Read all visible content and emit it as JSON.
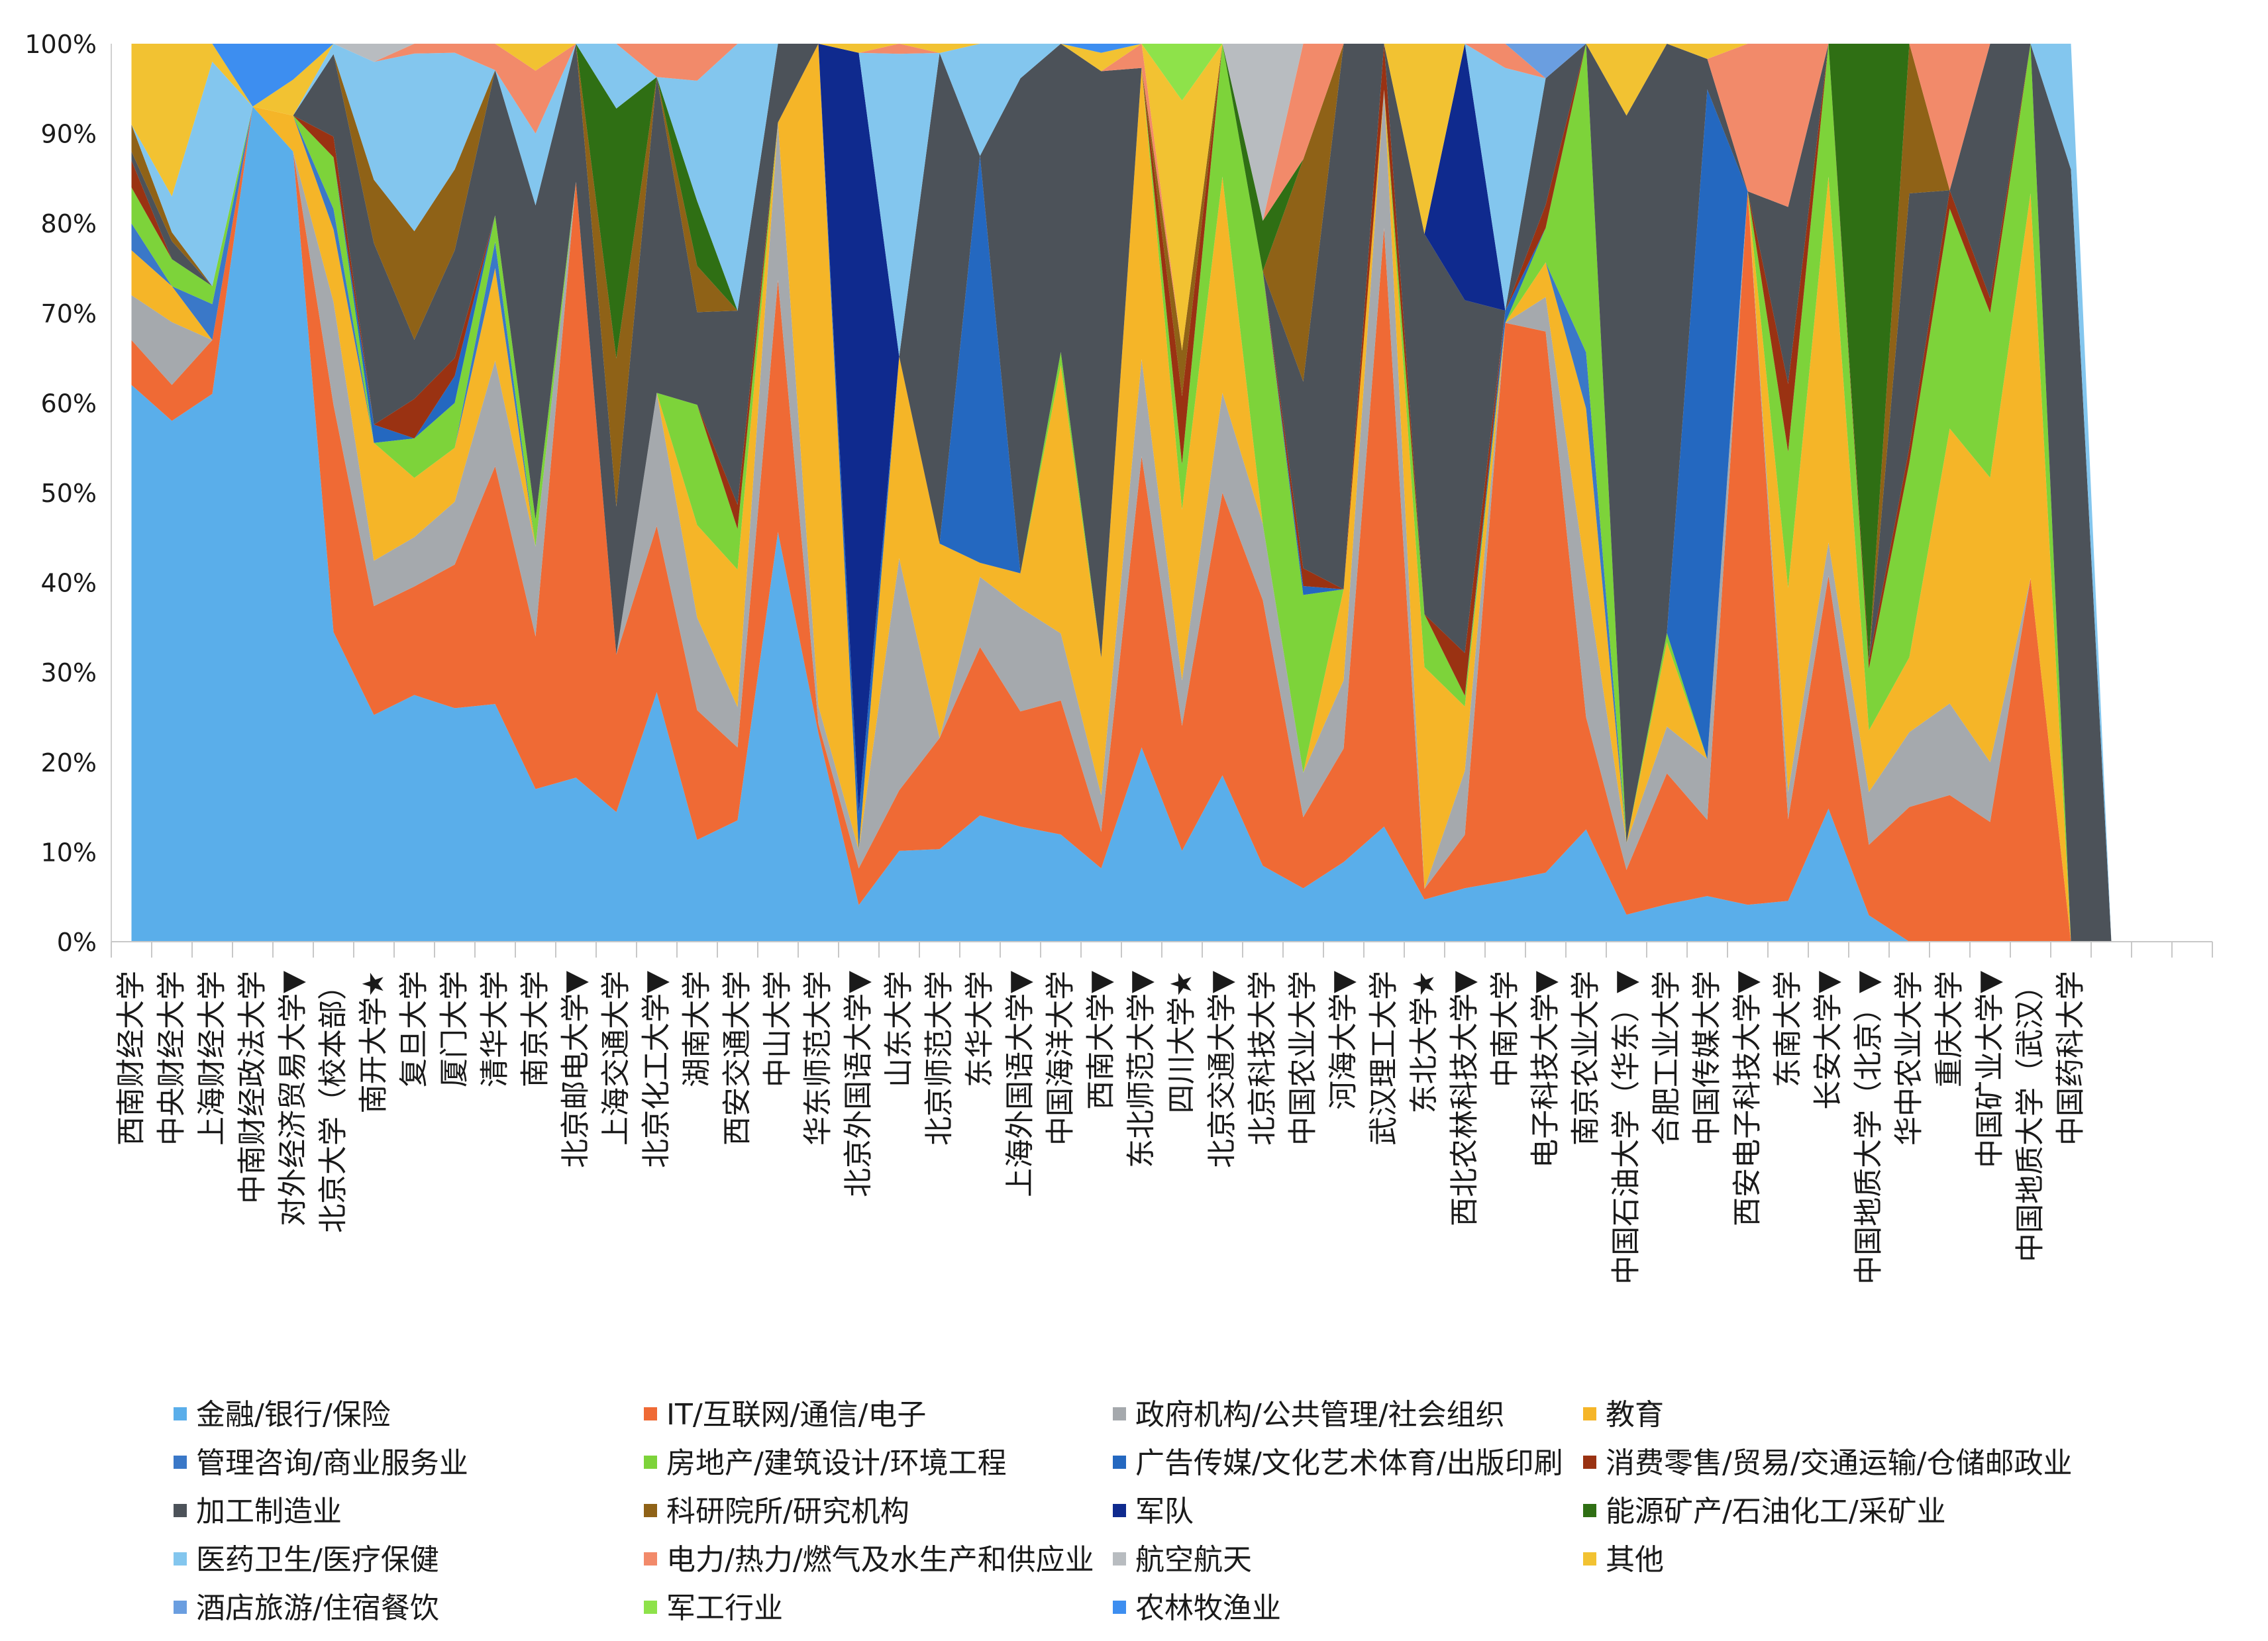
{
  "chart_data": {
    "type": "area",
    "stacked": "percent",
    "title": "",
    "xlabel": "",
    "ylabel": "",
    "ylim": [
      0,
      100
    ],
    "ytick_labels": [
      "0%",
      "10%",
      "20%",
      "30%",
      "40%",
      "50%",
      "60%",
      "70%",
      "80%",
      "90%",
      "100%"
    ],
    "grid": false,
    "legend_position": "bottom",
    "categories": [
      "西南财经大学",
      "中央财经大学",
      "上海财经大学",
      "中南财经政法大学",
      "对外经济贸易大学▼",
      "北京大学（校本部）",
      "南开大学★",
      "复旦大学",
      "厦门大学",
      "清华大学",
      "南京大学",
      "北京邮电大学▼",
      "上海交通大学",
      "北京化工大学▼",
      "湖南大学",
      "西安交通大学",
      "中山大学",
      "华东师范大学",
      "北京外国语大学▼",
      "山东大学",
      "北京师范大学",
      "东华大学",
      "上海外国语大学▼",
      "中国海洋大学",
      "西南大学▼",
      "东北师范大学▼",
      "四川大学★",
      "北京交通大学▼",
      "北京科技大学",
      "中国农业大学",
      "河海大学▼",
      "武汉理工大学",
      "东北大学★",
      "西北农林科技大学▼",
      "中南大学",
      "电子科技大学▼",
      "南京农业大学",
      "中国石油大学（华东）▼",
      "合肥工业大学",
      "中国传媒大学",
      "西安电子科技大学▼",
      "东南大学",
      "长安大学▼",
      "中国地质大学（北京）▼",
      "华中农业大学",
      "重庆大学",
      "中国矿业大学▼",
      "中国地质大学（武汉）",
      "中国药科大学",
      "",
      "",
      ""
    ],
    "series": [
      {
        "name": "金融/银行/保险",
        "color": "#5aaeea",
        "values": [
          62,
          58,
          61,
          93,
          88,
          30,
          25,
          25,
          26,
          18,
          17,
          19,
          14,
          15,
          11,
          15,
          26,
          23,
          4,
          9,
          10,
          9,
          10,
          8,
          8,
          8,
          8,
          10,
          6,
          6,
          7,
          5,
          4,
          5,
          5,
          6,
          4,
          3,
          4,
          3,
          3,
          3,
          4,
          3,
          0,
          0,
          0,
          0,
          0,
          0,
          0,
          0
        ]
      },
      {
        "name": "IT/互联网/通信/电子",
        "color": "#ef6a35",
        "values": [
          5,
          4,
          6,
          0,
          0,
          22,
          12,
          11,
          16,
          18,
          17,
          69,
          17,
          10,
          14,
          9,
          16,
          1,
          4,
          6,
          12,
          12,
          10,
          10,
          4,
          12,
          11,
          17,
          21,
          8,
          10,
          26,
          1,
          5,
          46,
          47,
          4,
          5,
          14,
          5,
          58,
          6,
          7,
          8,
          9,
          8,
          8,
          17,
          0,
          0,
          0,
          0
        ]
      },
      {
        "name": "政府机构/公共管理/社会组织",
        "color": "#a5a9ad",
        "values": [
          5,
          7,
          0,
          0,
          0,
          10,
          5,
          5,
          7,
          8,
          10,
          0,
          0,
          8,
          10,
          5,
          10,
          2,
          2,
          23,
          0,
          5,
          9,
          5,
          4,
          4,
          4,
          6,
          6,
          5,
          6,
          6,
          0,
          6,
          0,
          3,
          5,
          3,
          5,
          4,
          0,
          2,
          1,
          6,
          5,
          5,
          4,
          0,
          0,
          0,
          0,
          0
        ]
      },
      {
        "name": "教育",
        "color": "#f5b528",
        "values": [
          5,
          4,
          0,
          0,
          4,
          7,
          13,
          6,
          6,
          7,
          0,
          0,
          0,
          0,
          10,
          17,
          0,
          73,
          0,
          20,
          21,
          1,
          3,
          20,
          15,
          12,
          15,
          13,
          0,
          0,
          8,
          0,
          21,
          6,
          0,
          3,
          6,
          0,
          9,
          0,
          0,
          15,
          11,
          7,
          5,
          15,
          19,
          18,
          0,
          0,
          0,
          0
        ]
      },
      {
        "name": "管理咨询/商业服务业",
        "color": "#3a78c8",
        "values": [
          3,
          0,
          4,
          0,
          0,
          2,
          0,
          0,
          0,
          2,
          0,
          0,
          0,
          0,
          0,
          0,
          0,
          0,
          0,
          0,
          0,
          0,
          0,
          0,
          0,
          0,
          0,
          0,
          0,
          0,
          0,
          0,
          0,
          0,
          0,
          0,
          2,
          0,
          0,
          0,
          0,
          0,
          0,
          0,
          0,
          0,
          0,
          0,
          0,
          0,
          0,
          0
        ]
      },
      {
        "name": "房地产/建筑设计/环境工程",
        "color": "#7dd33a",
        "values": [
          4,
          3,
          2,
          0,
          0,
          5,
          0,
          4,
          5,
          2,
          3,
          0,
          0,
          0,
          13,
          5,
          0,
          0,
          0,
          0,
          0,
          0,
          0,
          1,
          0,
          0,
          4,
          8,
          20,
          20,
          0,
          0,
          5,
          1,
          0,
          3,
          11,
          0,
          1,
          0,
          0,
          10,
          4,
          7,
          13,
          12,
          11,
          7,
          0,
          0,
          0,
          0
        ]
      },
      {
        "name": "广告传媒/文化艺术体育/出版印刷",
        "color": "#2468c0",
        "values": [
          0,
          0,
          0,
          0,
          0,
          0,
          2,
          0,
          3,
          0,
          0,
          0,
          0,
          0,
          0,
          0,
          0,
          0,
          4,
          0,
          0,
          29,
          0,
          0,
          0,
          0,
          0,
          0,
          0,
          1,
          0,
          0,
          0,
          0,
          1,
          0,
          0,
          0,
          0,
          44,
          0,
          0,
          0,
          0,
          0,
          0,
          0,
          0,
          0,
          0,
          0,
          0
        ]
      },
      {
        "name": "消费零售/贸易/交通运输/仓储邮政业",
        "color": "#9a3212",
        "values": [
          3,
          0,
          0,
          0,
          0,
          2,
          0,
          4,
          2,
          0,
          0,
          0,
          0,
          0,
          0,
          3,
          0,
          0,
          0,
          0,
          0,
          0,
          0,
          0,
          0,
          0,
          6,
          0,
          0,
          2,
          0,
          2,
          0,
          4,
          0,
          2,
          0,
          0,
          0,
          0,
          0,
          5,
          0,
          1,
          1,
          1,
          1,
          0,
          0,
          0,
          0,
          0
        ]
      },
      {
        "name": "加工制造业",
        "color": "#4c5259",
        "values": [
          1,
          2,
          0,
          0,
          0,
          8,
          20,
          6,
          12,
          11,
          35,
          16,
          16,
          19,
          10,
          24,
          5,
          0,
          0,
          0,
          53,
          0,
          43,
          23,
          64,
          0,
          0,
          0,
          0,
          21,
          48,
          0,
          36,
          33,
          0,
          11,
          0,
          81,
          63,
          2,
          0,
          13,
          0,
          0,
          17,
          0,
          17,
          0,
          86,
          0,
          0,
          0
        ]
      },
      {
        "name": "科研院所/研究机构",
        "color": "#8f6217",
        "values": [
          3,
          1,
          0,
          0,
          0,
          0,
          7,
          11,
          9,
          0,
          0,
          0,
          16,
          0,
          5,
          0,
          0,
          0,
          0,
          0,
          0,
          0,
          0,
          0,
          0,
          0,
          4,
          0,
          0,
          25,
          0,
          0,
          0,
          0,
          0,
          0,
          0,
          0,
          0,
          0,
          0,
          0,
          0,
          0,
          10,
          0,
          0,
          0,
          0,
          0,
          0,
          0
        ]
      },
      {
        "name": "军队",
        "color": "#0f2a8e",
        "values": [
          0,
          0,
          0,
          0,
          0,
          0,
          0,
          0,
          0,
          0,
          0,
          0,
          0,
          0,
          0,
          0,
          0,
          0,
          83,
          0,
          0,
          0,
          0,
          0,
          0,
          0,
          0,
          0,
          0,
          0,
          0,
          0,
          0,
          24,
          0,
          0,
          0,
          0,
          0,
          0,
          0,
          0,
          0,
          0,
          0,
          0,
          0,
          0,
          0,
          0,
          0,
          0
        ]
      },
      {
        "name": "能源矿产/石油化工/采矿业",
        "color": "#2f6f14",
        "values": [
          0,
          0,
          0,
          0,
          0,
          0,
          0,
          0,
          0,
          0,
          0,
          0,
          27,
          0,
          7,
          0,
          0,
          0,
          0,
          0,
          0,
          0,
          0,
          0,
          0,
          0,
          0,
          0,
          4,
          0,
          0,
          0,
          0,
          0,
          0,
          0,
          0,
          0,
          0,
          0,
          0,
          0,
          0,
          70,
          0,
          0,
          0,
          0,
          0,
          0,
          0,
          0
        ]
      },
      {
        "name": "医药卫生/医疗保健",
        "color": "#83c6ee",
        "values": [
          0,
          4,
          25,
          0,
          0,
          1,
          13,
          18,
          13,
          0,
          8,
          0,
          7,
          0,
          13,
          33,
          0,
          0,
          0,
          30,
          0,
          8,
          3,
          0,
          0,
          0,
          0,
          0,
          0,
          0,
          0,
          0,
          0,
          0,
          20,
          0,
          0,
          0,
          0,
          0,
          0,
          0,
          0,
          0,
          0,
          0,
          0,
          0,
          14,
          0,
          0,
          0
        ]
      },
      {
        "name": "电力/热力/燃气及水生产和供应业",
        "color": "#f28a6a",
        "values": [
          0,
          0,
          0,
          0,
          0,
          0,
          0,
          1,
          1,
          2,
          7,
          0,
          0,
          2,
          4,
          0,
          0,
          0,
          0,
          1,
          0,
          0,
          0,
          0,
          0,
          1,
          0,
          0,
          0,
          13,
          0,
          0,
          0,
          0,
          2,
          0,
          0,
          0,
          0,
          0,
          12,
          12,
          0,
          0,
          0,
          8,
          0,
          0,
          0,
          0,
          0,
          0
        ]
      },
      {
        "name": "航空航天",
        "color": "#b8bcc0",
        "values": [
          0,
          0,
          0,
          0,
          0,
          0,
          2,
          0,
          0,
          0,
          0,
          0,
          0,
          0,
          0,
          0,
          0,
          0,
          0,
          0,
          0,
          0,
          0,
          0,
          0,
          0,
          0,
          0,
          14,
          0,
          0,
          0,
          0,
          0,
          0,
          0,
          0,
          0,
          0,
          0,
          0,
          0,
          0,
          0,
          0,
          0,
          0,
          0,
          0,
          0,
          0,
          0
        ]
      },
      {
        "name": "其他",
        "color": "#f2c232",
        "values": [
          9,
          17,
          2,
          0,
          4,
          0,
          0,
          0,
          0,
          0,
          3,
          0,
          0,
          0,
          0,
          0,
          0,
          0,
          1,
          0,
          1,
          0,
          0,
          0,
          2,
          0,
          22,
          0,
          0,
          0,
          0,
          0,
          18,
          0,
          0,
          0,
          0,
          8,
          0,
          1,
          0,
          0,
          0,
          0,
          0,
          0,
          0,
          0,
          0,
          0,
          0,
          0
        ]
      },
      {
        "name": "酒店旅游/住宿餐饮",
        "color": "#6a9ee0",
        "values": [
          0,
          0,
          0,
          0,
          0,
          0,
          0,
          0,
          0,
          0,
          0,
          0,
          0,
          0,
          0,
          0,
          0,
          0,
          0,
          0,
          0,
          0,
          0,
          0,
          0,
          0,
          0,
          0,
          0,
          0,
          0,
          0,
          0,
          0,
          0,
          3,
          0,
          0,
          0,
          0,
          0,
          0,
          0,
          0,
          0,
          0,
          0,
          0,
          0,
          0,
          0,
          0
        ]
      },
      {
        "name": "军工行业",
        "color": "#8ee24a",
        "values": [
          0,
          0,
          0,
          0,
          0,
          0,
          0,
          0,
          0,
          0,
          0,
          0,
          0,
          0,
          0,
          0,
          0,
          0,
          0,
          0,
          0,
          0,
          0,
          0,
          0,
          0,
          5,
          0,
          0,
          0,
          0,
          0,
          0,
          0,
          0,
          0,
          0,
          0,
          0,
          0,
          0,
          0,
          0,
          0,
          0,
          0,
          0,
          0,
          0,
          0,
          0,
          0
        ]
      },
      {
        "name": "农林牧渔业",
        "color": "#3d8ef0",
        "values": [
          0,
          0,
          0,
          7,
          4,
          0,
          0,
          0,
          0,
          0,
          0,
          0,
          0,
          0,
          0,
          0,
          0,
          0,
          0,
          0,
          0,
          0,
          0,
          0,
          1,
          0,
          0,
          0,
          0,
          0,
          0,
          0,
          0,
          0,
          0,
          0,
          0,
          0,
          0,
          0,
          0,
          0,
          0,
          0,
          0,
          0,
          0,
          0,
          0,
          0,
          0,
          0
        ]
      }
    ]
  }
}
